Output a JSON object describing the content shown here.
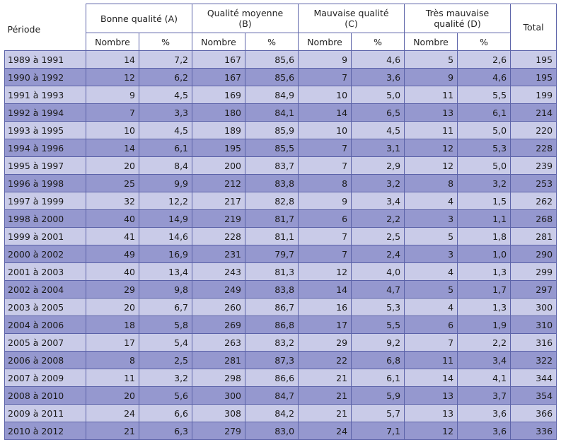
{
  "header": {
    "periode": "Période",
    "groups": [
      {
        "line1": "Bonne qualité (A)",
        "line2": ""
      },
      {
        "line1": "Qualité moyenne",
        "line2": "(B)"
      },
      {
        "line1": "Mauvaise qualité",
        "line2": "(C)"
      },
      {
        "line1": "Très mauvaise",
        "line2": "qualité (D)"
      }
    ],
    "nombre": "Nombre",
    "pct": "%",
    "total": "Total"
  },
  "rows": [
    [
      "1989 à 1991",
      "14",
      "7,2",
      "167",
      "85,6",
      "9",
      "4,6",
      "5",
      "2,6",
      "195"
    ],
    [
      "1990 à 1992",
      "12",
      "6,2",
      "167",
      "85,6",
      "7",
      "3,6",
      "9",
      "4,6",
      "195"
    ],
    [
      "1991 à 1993",
      "9",
      "4,5",
      "169",
      "84,9",
      "10",
      "5,0",
      "11",
      "5,5",
      "199"
    ],
    [
      "1992 à 1994",
      "7",
      "3,3",
      "180",
      "84,1",
      "14",
      "6,5",
      "13",
      "6,1",
      "214"
    ],
    [
      "1993 à 1995",
      "10",
      "4,5",
      "189",
      "85,9",
      "10",
      "4,5",
      "11",
      "5,0",
      "220"
    ],
    [
      "1994 à 1996",
      "14",
      "6,1",
      "195",
      "85,5",
      "7",
      "3,1",
      "12",
      "5,3",
      "228"
    ],
    [
      "1995 à 1997",
      "20",
      "8,4",
      "200",
      "83,7",
      "7",
      "2,9",
      "12",
      "5,0",
      "239"
    ],
    [
      "1996 à 1998",
      "25",
      "9,9",
      "212",
      "83,8",
      "8",
      "3,2",
      "8",
      "3,2",
      "253"
    ],
    [
      "1997 à 1999",
      "32",
      "12,2",
      "217",
      "82,8",
      "9",
      "3,4",
      "4",
      "1,5",
      "262"
    ],
    [
      "1998 à 2000",
      "40",
      "14,9",
      "219",
      "81,7",
      "6",
      "2,2",
      "3",
      "1,1",
      "268"
    ],
    [
      "1999 à 2001",
      "41",
      "14,6",
      "228",
      "81,1",
      "7",
      "2,5",
      "5",
      "1,8",
      "281"
    ],
    [
      "2000 à 2002",
      "49",
      "16,9",
      "231",
      "79,7",
      "7",
      "2,4",
      "3",
      "1,0",
      "290"
    ],
    [
      "2001 à 2003",
      "40",
      "13,4",
      "243",
      "81,3",
      "12",
      "4,0",
      "4",
      "1,3",
      "299"
    ],
    [
      "2002 à 2004",
      "29",
      "9,8",
      "249",
      "83,8",
      "14",
      "4,7",
      "5",
      "1,7",
      "297"
    ],
    [
      "2003 à 2005",
      "20",
      "6,7",
      "260",
      "86,7",
      "16",
      "5,3",
      "4",
      "1,3",
      "300"
    ],
    [
      "2004 à 2006",
      "18",
      "5,8",
      "269",
      "86,8",
      "17",
      "5,5",
      "6",
      "1,9",
      "310"
    ],
    [
      "2005 à 2007",
      "17",
      "5,4",
      "263",
      "83,2",
      "29",
      "9,2",
      "7",
      "2,2",
      "316"
    ],
    [
      "2006 à 2008",
      "8",
      "2,5",
      "281",
      "87,3",
      "22",
      "6,8",
      "11",
      "3,4",
      "322"
    ],
    [
      "2007 à 2009",
      "11",
      "3,2",
      "298",
      "86,6",
      "21",
      "6,1",
      "14",
      "4,1",
      "344"
    ],
    [
      "2008 à 2010",
      "20",
      "5,6",
      "300",
      "84,7",
      "21",
      "5,9",
      "13",
      "3,7",
      "354"
    ],
    [
      "2009 à 2011",
      "24",
      "6,6",
      "308",
      "84,2",
      "21",
      "5,7",
      "13",
      "3,6",
      "366"
    ],
    [
      "2010 à 2012",
      "21",
      "6,3",
      "279",
      "83,0",
      "24",
      "7,1",
      "12",
      "3,6",
      "336"
    ]
  ],
  "colors": {
    "row_light": "#c9cbe8",
    "row_dark": "#9598cf",
    "border": "#5b62a8"
  }
}
